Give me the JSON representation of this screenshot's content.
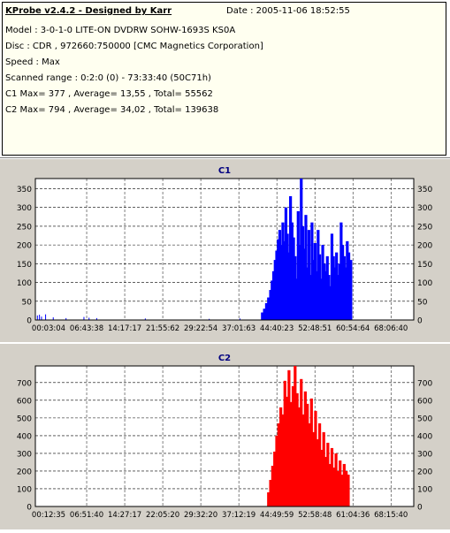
{
  "header": {
    "title": "KProbe v2.4.2 - Designed by Karr",
    "date": "Date : 2005-11-06 18:52:55",
    "lines": [
      "Model : 3-0-1-0 LITE-ON DVDRW SOHW-1693S KS0A",
      "Disc : CDR , 972660:750000 [CMC Magnetics Corporation]",
      "Speed : Max",
      "Scanned range : 0:2:0 (0) - 73:33:40 (50C71h)",
      "C1 Max= 377 , Average= 13,55 , Total= 55562",
      "C2 Max= 794 , Average= 34,02 , Total= 139638"
    ]
  },
  "chart_data": [
    {
      "type": "bar",
      "title": "C1",
      "color": "#0000ff",
      "ylim": [
        0,
        377
      ],
      "yticks": [
        0,
        50,
        100,
        150,
        200,
        250,
        300,
        350
      ],
      "xticks": [
        "00:03:04",
        "06:43:38",
        "14:17:17",
        "21:55:62",
        "29:22:54",
        "37:01:63",
        "44:40:23",
        "52:48:51",
        "60:54:64",
        "68:06:40"
      ],
      "grid": true,
      "x": [
        44.4,
        44.8,
        45.2,
        45.6,
        46.0,
        46.3,
        46.6,
        46.9,
        47.2,
        47.5,
        47.8,
        48.1,
        48.4,
        48.7,
        49.0,
        49.3,
        49.6,
        49.9,
        50.2,
        50.5,
        50.8,
        51.1,
        51.4,
        51.7,
        52.0,
        52.3,
        52.6,
        52.9,
        53.2,
        53.5,
        53.8,
        54.1,
        54.4,
        54.7,
        55.0,
        55.3,
        55.6,
        55.9,
        56.2,
        56.5,
        56.8,
        57.1,
        57.4,
        57.7,
        58.0,
        58.3,
        58.6,
        58.9,
        59.2,
        59.5,
        59.8,
        60.1,
        60.4,
        60.7,
        61.0,
        61.3,
        61.5,
        61.7
      ],
      "values": [
        20,
        30,
        45,
        60,
        80,
        105,
        130,
        160,
        185,
        215,
        240,
        200,
        260,
        210,
        300,
        230,
        180,
        330,
        260,
        220,
        170,
        110,
        290,
        200,
        377,
        250,
        190,
        280,
        140,
        240,
        120,
        260,
        160,
        205,
        130,
        240,
        175,
        110,
        200,
        150,
        130,
        170,
        120,
        90,
        230,
        170,
        140,
        180,
        120,
        150,
        260,
        200,
        170,
        140,
        210,
        180,
        140,
        160
      ],
      "noise": [
        [
          0.4,
          12
        ],
        [
          0.8,
          14
        ],
        [
          1.2,
          9
        ],
        [
          2.0,
          15
        ],
        [
          3.5,
          7
        ],
        [
          6.0,
          5
        ],
        [
          9.5,
          8
        ],
        [
          10.5,
          6
        ],
        [
          12.0,
          5
        ],
        [
          21.5,
          4
        ],
        [
          34.0,
          3
        ],
        [
          40.0,
          4
        ]
      ]
    },
    {
      "type": "bar",
      "title": "C2",
      "color": "#ff0000",
      "ylim": [
        0,
        794
      ],
      "yticks": [
        0,
        100,
        200,
        300,
        400,
        500,
        600,
        700
      ],
      "xticks": [
        "00:12:35",
        "06:51:40",
        "14:27:17",
        "22:05:20",
        "29:32:20",
        "37:12:19",
        "44:49:59",
        "52:58:48",
        "61:04:36",
        "68:15:40"
      ],
      "grid": true,
      "x": [
        45.6,
        46.0,
        46.4,
        46.8,
        47.2,
        47.6,
        48.0,
        48.4,
        48.8,
        49.2,
        49.6,
        50.0,
        50.4,
        50.8,
        51.2,
        51.6,
        52.0,
        52.4,
        52.8,
        53.2,
        53.6,
        54.0,
        54.4,
        54.8,
        55.2,
        55.6,
        56.0,
        56.4,
        56.8,
        57.2,
        57.6,
        58.0,
        58.4,
        58.8,
        59.2,
        59.6,
        60.0,
        60.4,
        60.8,
        61.2
      ],
      "values": [
        80,
        150,
        230,
        310,
        400,
        470,
        560,
        520,
        710,
        620,
        770,
        590,
        680,
        794,
        640,
        560,
        720,
        520,
        650,
        580,
        470,
        610,
        420,
        540,
        380,
        470,
        320,
        420,
        280,
        360,
        240,
        330,
        220,
        300,
        200,
        260,
        180,
        240,
        200,
        180
      ],
      "noise": []
    }
  ]
}
